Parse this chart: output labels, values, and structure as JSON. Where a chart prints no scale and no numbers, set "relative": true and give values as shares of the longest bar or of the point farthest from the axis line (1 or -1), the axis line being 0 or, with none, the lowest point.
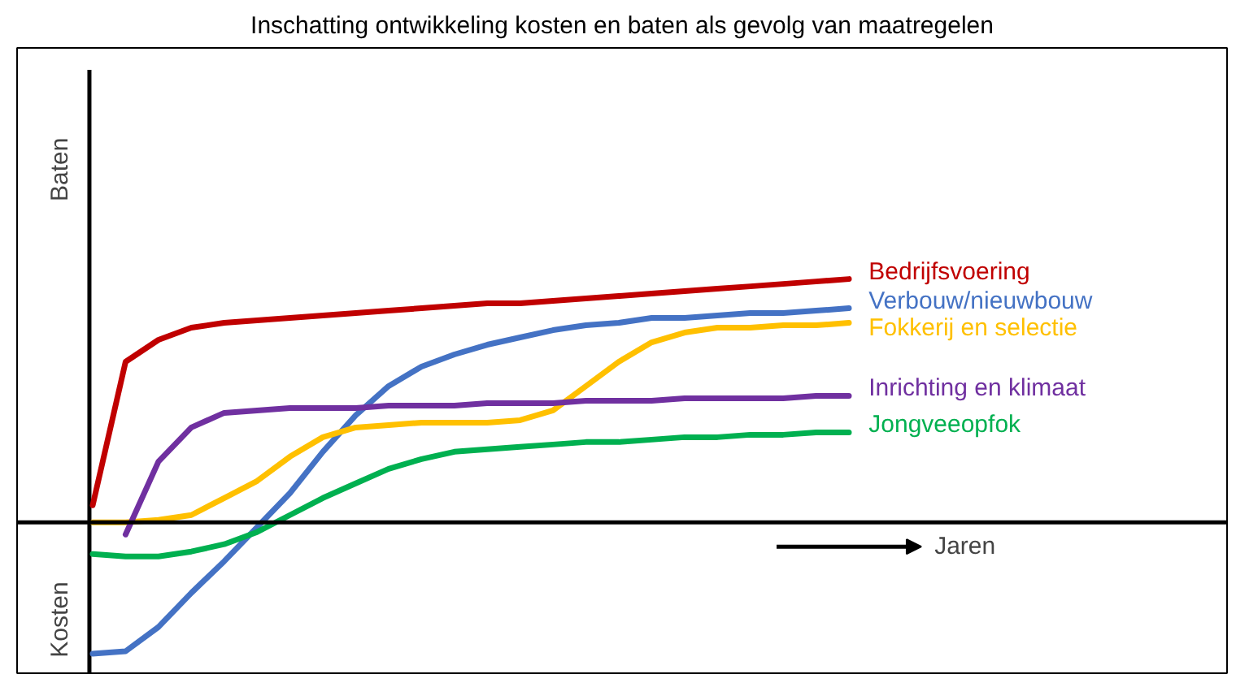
{
  "chart_data": {
    "type": "line",
    "relative": true,
    "title": "Inschatting ontwikkeling kosten en baten als gevolg van maatregelen",
    "xlabel": "Jaren",
    "annotations": [
      "Baten",
      "Kosten"
    ],
    "categories": [
      null,
      null,
      null,
      null,
      null,
      null,
      null,
      null,
      null,
      null,
      null,
      null,
      null,
      null,
      null,
      null,
      null,
      null,
      null,
      null,
      null,
      null,
      null,
      null
    ],
    "series": [
      {
        "name": "Bedrijfsvoering",
        "color": "#c00000",
        "values": [
          0.07,
          0.66,
          0.75,
          0.8,
          0.82,
          0.83,
          0.84,
          0.85,
          0.86,
          0.87,
          0.88,
          0.89,
          0.9,
          0.9,
          0.91,
          0.92,
          0.93,
          0.94,
          0.95,
          0.96,
          0.97,
          0.98,
          0.99,
          1.0
        ]
      },
      {
        "name": "Verbouw/nieuwbouw",
        "color": "#4472c4",
        "values": [
          -0.54,
          -0.53,
          -0.43,
          -0.29,
          -0.16,
          -0.02,
          0.12,
          0.29,
          0.44,
          0.56,
          0.64,
          0.69,
          0.73,
          0.76,
          0.79,
          0.81,
          0.82,
          0.84,
          0.84,
          0.85,
          0.86,
          0.86,
          0.87,
          0.88
        ]
      },
      {
        "name": "Fokkerij en selectie",
        "color": "#ffc000",
        "values": [
          0,
          0,
          0.01,
          0.03,
          0.1,
          0.17,
          0.27,
          0.35,
          0.39,
          0.4,
          0.41,
          0.41,
          0.41,
          0.42,
          0.46,
          0.56,
          0.66,
          0.74,
          0.78,
          0.8,
          0.8,
          0.81,
          0.81,
          0.82
        ]
      },
      {
        "name": "Inrichting en klimaat",
        "color": "#7030a0",
        "values": [
          null,
          -0.05,
          0.25,
          0.39,
          0.45,
          0.46,
          0.47,
          0.47,
          0.47,
          0.48,
          0.48,
          0.48,
          0.49,
          0.49,
          0.49,
          0.5,
          0.5,
          0.5,
          0.51,
          0.51,
          0.51,
          0.51,
          0.52,
          0.52
        ]
      },
      {
        "name": "Jongveeopfok",
        "color": "#00b050",
        "values": [
          -0.13,
          -0.14,
          -0.14,
          -0.12,
          -0.09,
          -0.04,
          0.03,
          0.1,
          0.16,
          0.22,
          0.26,
          0.29,
          0.3,
          0.31,
          0.32,
          0.33,
          0.33,
          0.34,
          0.35,
          0.35,
          0.36,
          0.36,
          0.37,
          0.37
        ]
      }
    ]
  }
}
